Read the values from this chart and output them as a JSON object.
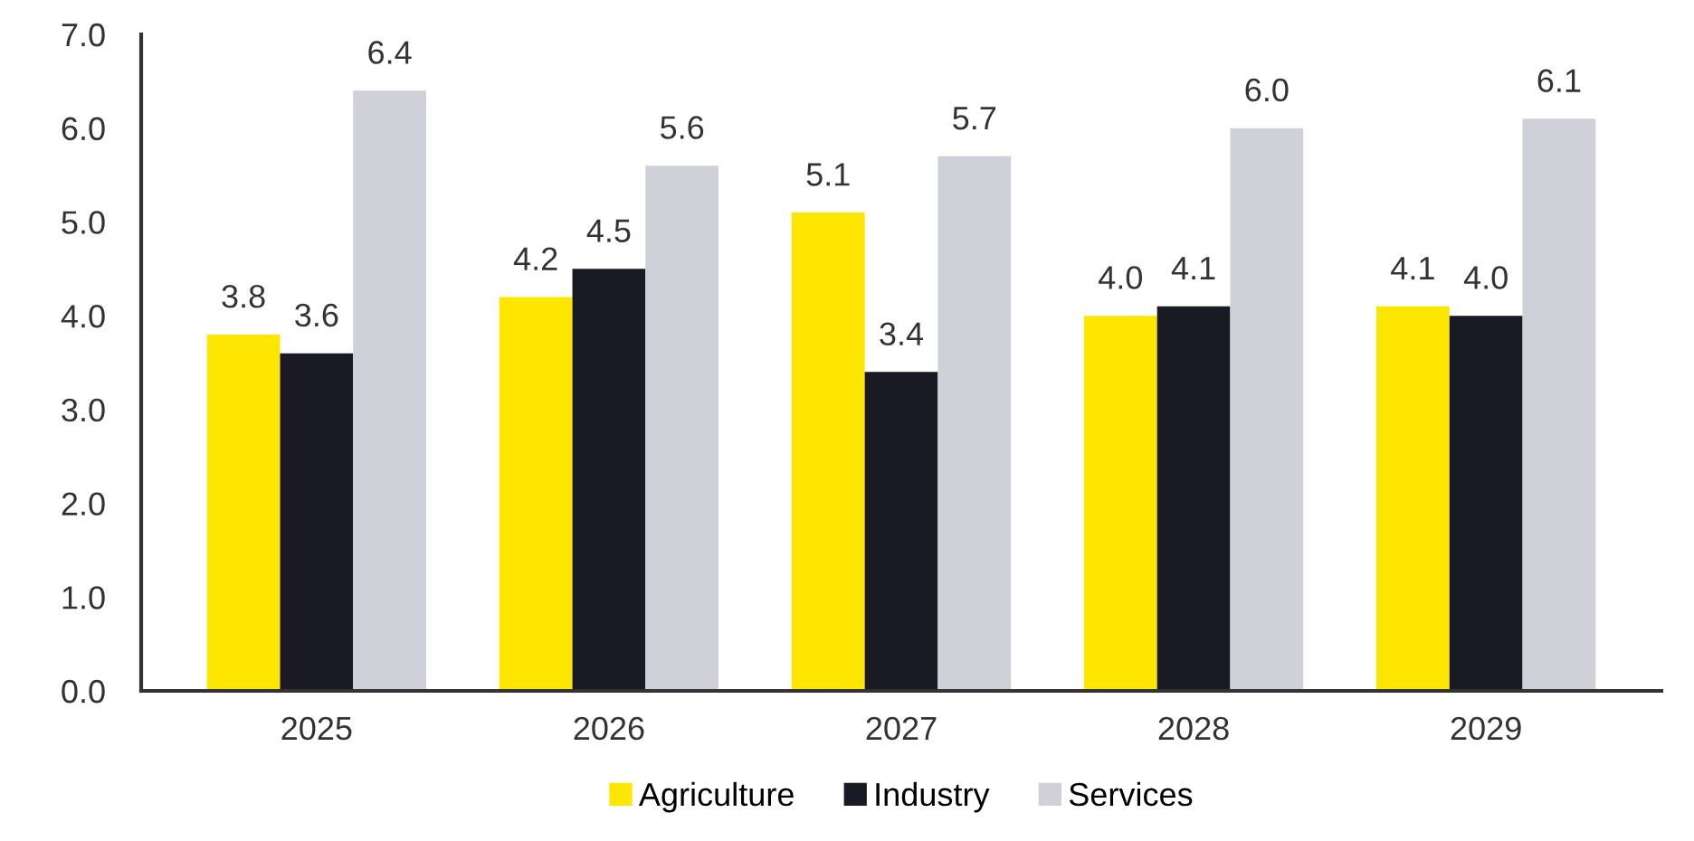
{
  "chart_data": {
    "type": "bar",
    "categories": [
      "2025",
      "2026",
      "2027",
      "2028",
      "2029"
    ],
    "series": [
      {
        "name": "Agriculture",
        "color": "#ffe600",
        "values": [
          3.8,
          4.2,
          5.1,
          4.0,
          4.1
        ],
        "value_labels": [
          "3.8",
          "4.2",
          "5.1",
          "4.0",
          "4.1"
        ]
      },
      {
        "name": "Industry",
        "color": "#1a1a24",
        "values": [
          3.6,
          4.5,
          3.4,
          4.1,
          4.0
        ],
        "value_labels": [
          "3.6",
          "4.5",
          "3.4",
          "4.1",
          "4.0"
        ]
      },
      {
        "name": "Services",
        "color": "#d0d0d8",
        "values": [
          6.4,
          5.6,
          5.7,
          6.0,
          6.1
        ],
        "value_labels": [
          "6.4",
          "5.6",
          "5.7",
          "6.0",
          "6.1"
        ]
      }
    ],
    "ylim": [
      0,
      7
    ],
    "yticks": [
      {
        "value": 0,
        "label": "0.0"
      },
      {
        "value": 1,
        "label": "1.0"
      },
      {
        "value": 2,
        "label": "2.0"
      },
      {
        "value": 3,
        "label": "3.0"
      },
      {
        "value": 4,
        "label": "4.0"
      },
      {
        "value": 5,
        "label": "5.0"
      },
      {
        "value": 6,
        "label": "6.0"
      },
      {
        "value": 7,
        "label": "7.0"
      }
    ],
    "legend": "bottom",
    "grid": false
  }
}
